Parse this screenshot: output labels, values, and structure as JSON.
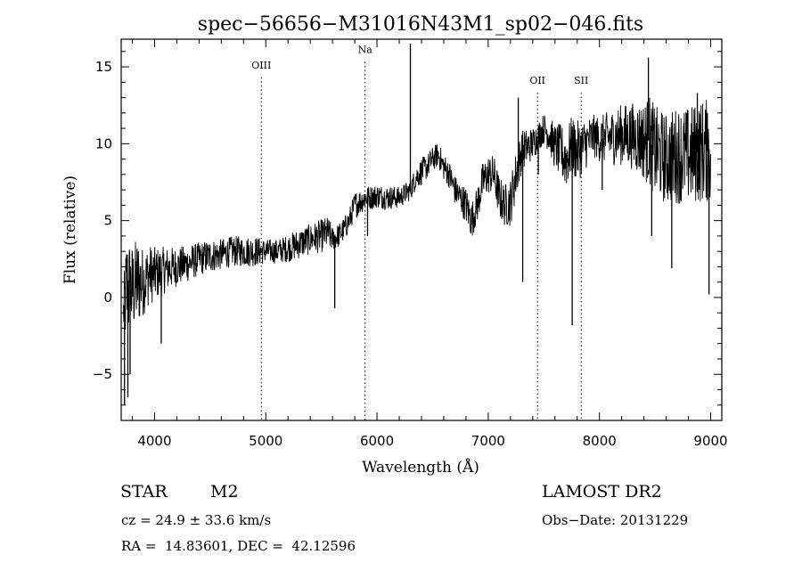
{
  "chart_data": {
    "type": "line",
    "title": "spec−56656−M31016N43M1_sp02−046.fits",
    "xlabel": "Wavelength (Å)",
    "ylabel": "Flux (relative)",
    "xlim": [
      3700,
      9100
    ],
    "ylim": [
      -8,
      16.8
    ],
    "xticks": [
      4000,
      5000,
      6000,
      7000,
      8000,
      9000
    ],
    "yticks": [
      -5,
      0,
      5,
      10,
      15
    ],
    "xtick_labels": [
      "4000",
      "5000",
      "6000",
      "7000",
      "8000",
      "9000"
    ],
    "ytick_labels": [
      "−5",
      "0",
      "5",
      "10",
      "15"
    ],
    "grid": false,
    "lines": [
      {
        "label": "OIII",
        "x": 4960,
        "label_y": 14.9
      },
      {
        "label": "Na",
        "x": 5893,
        "label_y": 15.9
      },
      {
        "label": "OII",
        "x": 7443,
        "label_y": 13.9
      },
      {
        "label": "SII",
        "x": 7836,
        "label_y": 13.9
      }
    ],
    "x": [
      3700,
      3750,
      3800,
      3850,
      3900,
      3950,
      4000,
      4100,
      4200,
      4300,
      4400,
      4500,
      4600,
      4700,
      4800,
      4900,
      5000,
      5100,
      5200,
      5300,
      5400,
      5500,
      5560,
      5600,
      5650,
      5700,
      5750,
      5800,
      5900,
      5950,
      6000,
      6100,
      6200,
      6300,
      6350,
      6400,
      6450,
      6500,
      6550,
      6600,
      6650,
      6700,
      6750,
      6800,
      6850,
      6900,
      6950,
      7000,
      7050,
      7100,
      7150,
      7200,
      7250,
      7300,
      7350,
      7400,
      7450,
      7500,
      7550,
      7600,
      7650,
      7700,
      7750,
      7800,
      7850,
      7900,
      7950,
      8000,
      8100,
      8200,
      8300,
      8400,
      8450,
      8500,
      8600,
      8700,
      8800,
      8900,
      8950,
      9000
    ],
    "y": [
      -2,
      0.5,
      0.5,
      1,
      1,
      1.5,
      1.5,
      1.8,
      2,
      2.2,
      2.5,
      2.7,
      2.8,
      3,
      3,
      3,
      3,
      3,
      3.2,
      3.5,
      3.8,
      4,
      4.2,
      3.8,
      4,
      4.4,
      5,
      6,
      6.5,
      6.5,
      6.6,
      6.5,
      6.5,
      7,
      7.8,
      8.2,
      8.5,
      9,
      9.3,
      8.5,
      8,
      7,
      6.5,
      6,
      5,
      6,
      7.5,
      8,
      8,
      6.5,
      6,
      6.2,
      8,
      9.5,
      9.8,
      10,
      10.5,
      11,
      10.6,
      9.8,
      9.5,
      9,
      9.8,
      9.5,
      9.8,
      10.2,
      10.5,
      10.3,
      10.4,
      10.6,
      10.5,
      10.2,
      10.2,
      9.5,
      9,
      9.3,
      9.2,
      9.5,
      9.6,
      9.4
    ],
    "noise": [
      0,
      4,
      3,
      3,
      2.2,
      2,
      1.8,
      1.5,
      1.3,
      1.2,
      1.1,
      1.1,
      1,
      1,
      1,
      1,
      0.8,
      0.8,
      0.9,
      1,
      1,
      1.1,
      1.1,
      0.8,
      0.8,
      0.8,
      0.8,
      0.9,
      0.8,
      0.8,
      0.8,
      0.8,
      0.7,
      0.7,
      0.8,
      0.9,
      0.8,
      0.8,
      0.8,
      0.9,
      0.9,
      1,
      1,
      1.2,
      1.2,
      1.2,
      1.3,
      1.3,
      1.3,
      1.4,
      1.4,
      1.6,
      1.6,
      1.4,
      1.2,
      1.1,
      1,
      1,
      1.2,
      1.5,
      1.8,
      2,
      2,
      2,
      1.8,
      1.6,
      1.4,
      1.5,
      1.8,
      2,
      2.2,
      2.6,
      3,
      3,
      3,
      3.2,
      3.2,
      3.4,
      3.4,
      3.4
    ],
    "spikes": [
      [
        3730,
        -7
      ],
      [
        3760,
        -6.5
      ],
      [
        3780,
        -5
      ],
      [
        4060,
        -3
      ],
      [
        5620,
        -0.7
      ],
      [
        5915,
        4
      ],
      [
        6300,
        16.5
      ],
      [
        7270,
        13
      ],
      [
        7310,
        1
      ],
      [
        7450,
        8
      ],
      [
        7755,
        -1.8
      ],
      [
        7780,
        8
      ],
      [
        8025,
        7
      ],
      [
        8440,
        15.6
      ],
      [
        8470,
        4
      ],
      [
        8650,
        1.9
      ],
      [
        8880,
        13.3
      ],
      [
        8970,
        12
      ],
      [
        8985,
        0.2
      ]
    ]
  },
  "info": {
    "object_class": "STAR",
    "subclass": "M2",
    "survey": "LAMOST DR2",
    "cz": "cz = 24.9 ± 33.6 km/s",
    "obs_date": "Obs−Date: 20131229",
    "coords": "RA =  14.83601, DEC =  42.12596"
  }
}
